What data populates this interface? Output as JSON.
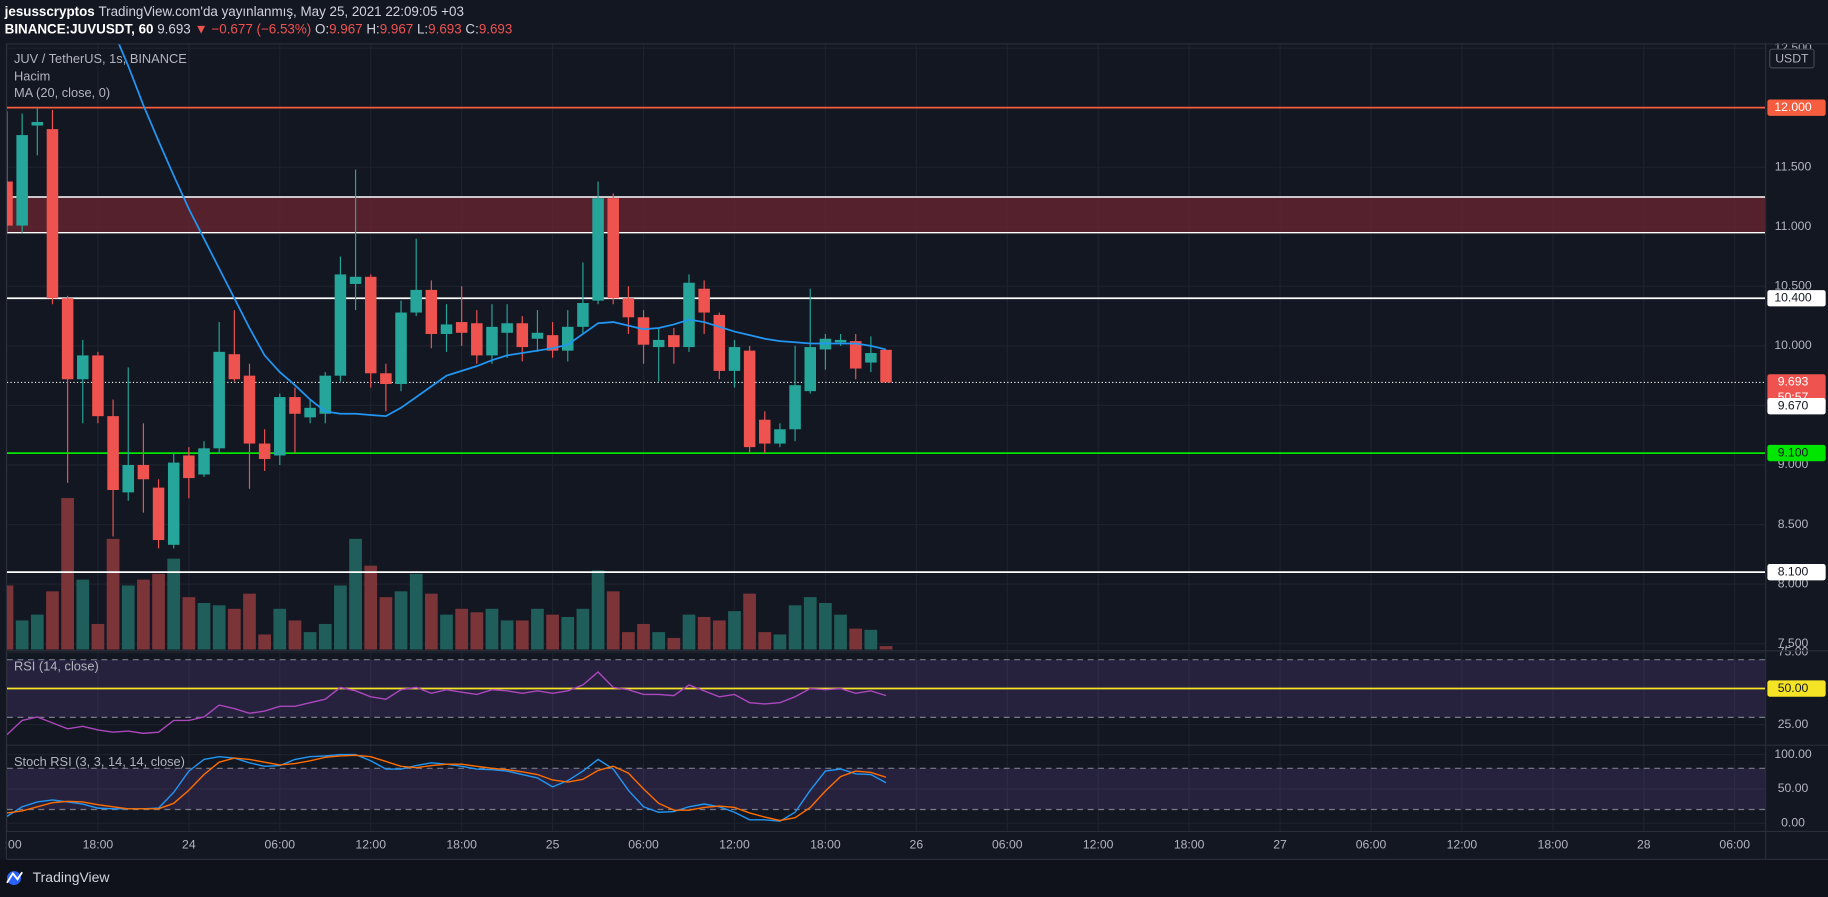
{
  "header": {
    "author": "jesusscryptos",
    "published": "TradingView.com'da yayınlanmış, May 25, 2021 22:09:05 +03",
    "symbol": "BINANCE:JUVUSDT, 60",
    "last": "9.693",
    "change": "▼ −0.677 (−6.53%)",
    "ohlc": [
      {
        "key": "O:",
        "value": "9.967"
      },
      {
        "key": "H:",
        "value": "9.967"
      },
      {
        "key": "L:",
        "value": "9.693"
      },
      {
        "key": "C:",
        "value": "9.693"
      }
    ]
  },
  "footer": {
    "brand": "TradingView"
  },
  "chart_data": [
    {
      "type": "candlestick",
      "title": "JUV / TetherUS, 1s, BINANCE",
      "unit": "USDT",
      "x": [
        "2021-05-23T12:00",
        "2021-05-23T13:00",
        "2021-05-23T14:00",
        "2021-05-23T15:00",
        "2021-05-23T16:00",
        "2021-05-23T17:00",
        "2021-05-23T18:00",
        "2021-05-23T19:00",
        "2021-05-23T20:00",
        "2021-05-23T21:00",
        "2021-05-23T22:00",
        "2021-05-23T23:00",
        "2021-05-24T00:00",
        "2021-05-24T01:00",
        "2021-05-24T02:00",
        "2021-05-24T03:00",
        "2021-05-24T04:00",
        "2021-05-24T05:00",
        "2021-05-24T06:00",
        "2021-05-24T07:00",
        "2021-05-24T08:00",
        "2021-05-24T09:00",
        "2021-05-24T10:00",
        "2021-05-24T11:00",
        "2021-05-24T12:00",
        "2021-05-24T13:00",
        "2021-05-24T14:00",
        "2021-05-24T15:00",
        "2021-05-24T16:00",
        "2021-05-24T17:00",
        "2021-05-24T18:00",
        "2021-05-24T19:00",
        "2021-05-24T20:00",
        "2021-05-24T21:00",
        "2021-05-24T22:00",
        "2021-05-24T23:00",
        "2021-05-25T00:00",
        "2021-05-25T01:00",
        "2021-05-25T02:00",
        "2021-05-25T03:00",
        "2021-05-25T04:00",
        "2021-05-25T05:00",
        "2021-05-25T06:00",
        "2021-05-25T07:00",
        "2021-05-25T08:00",
        "2021-05-25T09:00",
        "2021-05-25T10:00",
        "2021-05-25T11:00",
        "2021-05-25T12:00",
        "2021-05-25T13:00",
        "2021-05-25T14:00",
        "2021-05-25T15:00",
        "2021-05-25T16:00",
        "2021-05-25T17:00",
        "2021-05-25T18:00",
        "2021-05-25T19:00",
        "2021-05-25T20:00",
        "2021-05-25T21:00",
        "2021-05-25T22:00"
      ],
      "open": [
        11.38,
        11.01,
        11.85,
        11.82,
        10.4,
        9.72,
        9.92,
        9.41,
        8.77,
        9.0,
        8.81,
        8.33,
        9.08,
        8.92,
        9.14,
        9.93,
        9.75,
        9.18,
        9.08,
        9.57,
        9.4,
        9.43,
        9.75,
        10.52,
        10.58,
        9.77,
        9.68,
        10.28,
        10.47,
        10.1,
        10.2,
        10.19,
        9.92,
        10.11,
        10.19,
        10.06,
        10.09,
        9.96,
        10.16,
        10.38,
        11.24,
        10.4,
        10.24,
        9.99,
        10.09,
        9.99,
        10.48,
        10.26,
        9.79,
        9.96,
        9.38,
        9.18,
        9.3,
        9.62,
        9.97,
        10.03,
        10.04,
        9.86,
        9.967
      ],
      "high": [
        11.97,
        11.95,
        12.0,
        11.98,
        10.42,
        10.05,
        9.95,
        9.55,
        9.82,
        9.35,
        8.88,
        9.1,
        9.15,
        9.2,
        10.2,
        10.3,
        9.85,
        9.3,
        9.6,
        9.65,
        9.55,
        9.78,
        10.75,
        11.48,
        10.6,
        9.85,
        10.38,
        10.9,
        10.55,
        10.35,
        10.5,
        10.3,
        10.35,
        10.35,
        10.25,
        10.3,
        10.2,
        10.3,
        10.7,
        11.38,
        11.28,
        10.5,
        10.3,
        10.15,
        10.15,
        10.6,
        10.55,
        10.28,
        10.05,
        10.0,
        9.45,
        9.35,
        10.0,
        10.48,
        10.1,
        10.1,
        10.1,
        10.08,
        9.967
      ],
      "low": [
        10.94,
        10.95,
        11.6,
        10.35,
        8.85,
        9.35,
        9.35,
        8.4,
        8.7,
        8.6,
        8.3,
        8.3,
        8.72,
        8.9,
        9.1,
        9.7,
        8.8,
        8.95,
        9.0,
        9.1,
        9.35,
        9.35,
        9.7,
        10.3,
        9.65,
        9.45,
        9.62,
        10.25,
        9.98,
        9.95,
        10.0,
        9.85,
        9.85,
        9.9,
        9.87,
        9.95,
        9.9,
        9.87,
        10.1,
        10.35,
        10.35,
        10.1,
        9.85,
        9.7,
        9.85,
        9.95,
        10.1,
        9.72,
        9.65,
        9.1,
        9.1,
        9.15,
        9.2,
        9.6,
        9.8,
        10.0,
        9.72,
        9.78,
        9.693
      ],
      "close": [
        11.01,
        11.77,
        11.88,
        10.4,
        9.72,
        9.92,
        9.41,
        8.79,
        9.0,
        8.88,
        8.37,
        9.02,
        8.89,
        9.14,
        9.95,
        9.72,
        9.18,
        9.05,
        9.57,
        9.43,
        9.48,
        9.75,
        10.6,
        10.58,
        9.77,
        9.68,
        10.28,
        10.47,
        10.1,
        10.18,
        10.11,
        9.92,
        10.16,
        10.19,
        9.99,
        10.11,
        9.96,
        10.16,
        10.36,
        11.24,
        10.4,
        10.24,
        10.01,
        10.05,
        9.99,
        10.53,
        10.28,
        9.79,
        9.99,
        9.15,
        9.18,
        9.3,
        9.67,
        9.99,
        10.06,
        10.05,
        9.81,
        9.94,
        9.693
      ],
      "up_color": "#26a69a",
      "down_color": "#ef5350",
      "volume": {
        "name": "Hacim",
        "up_color": "#1f5e5a",
        "down_color": "#7b3438",
        "ylim": [
          0,
          350
        ],
        "values": [
          55,
          25,
          30,
          50,
          130,
          60,
          22,
          95,
          55,
          60,
          65,
          78,
          45,
          40,
          38,
          35,
          48,
          13,
          35,
          25,
          15,
          22,
          55,
          95,
          72,
          45,
          50,
          65,
          48,
          30,
          35,
          32,
          35,
          25,
          25,
          35,
          30,
          28,
          35,
          68,
          50,
          15,
          22,
          15,
          10,
          30,
          28,
          25,
          33,
          48,
          15,
          13,
          38,
          45,
          40,
          30,
          18,
          17,
          3
        ]
      },
      "series": [
        {
          "name": "MA (20, close, 0)",
          "color": "#2196f3",
          "values": [
            null,
            null,
            null,
            null,
            null,
            null,
            null,
            12.65,
            12.35,
            12.02,
            11.72,
            11.43,
            11.15,
            10.9,
            10.65,
            10.4,
            10.15,
            9.92,
            9.78,
            9.67,
            9.55,
            9.45,
            9.43,
            9.43,
            9.42,
            9.41,
            9.48,
            9.57,
            9.66,
            9.75,
            9.79,
            9.83,
            9.88,
            9.92,
            9.94,
            9.96,
            9.98,
            10.01,
            10.1,
            10.19,
            10.2,
            10.17,
            10.14,
            10.15,
            10.18,
            10.22,
            10.2,
            10.16,
            10.12,
            10.09,
            10.06,
            10.04,
            10.03,
            10.02,
            10.02,
            10.02,
            10.02,
            10.0,
            9.97
          ]
        }
      ],
      "xlim": [
        "2021-05-23T12:00",
        "2021-05-28T08:00"
      ],
      "xticks": [
        {
          "value": "2021-05-23T12:00",
          "label": ":00"
        },
        {
          "value": "2021-05-23T18:00",
          "label": "18:00"
        },
        {
          "value": "2021-05-24T00:00",
          "label": "24"
        },
        {
          "value": "2021-05-24T06:00",
          "label": "06:00"
        },
        {
          "value": "2021-05-24T12:00",
          "label": "12:00"
        },
        {
          "value": "2021-05-24T18:00",
          "label": "18:00"
        },
        {
          "value": "2021-05-25T00:00",
          "label": "25"
        },
        {
          "value": "2021-05-25T06:00",
          "label": "06:00"
        },
        {
          "value": "2021-05-25T12:00",
          "label": "12:00"
        },
        {
          "value": "2021-05-25T18:00",
          "label": "18:00"
        },
        {
          "value": "2021-05-26T00:00",
          "label": "26"
        },
        {
          "value": "2021-05-26T06:00",
          "label": "06:00"
        },
        {
          "value": "2021-05-26T12:00",
          "label": "12:00"
        },
        {
          "value": "2021-05-26T18:00",
          "label": "18:00"
        },
        {
          "value": "2021-05-27T00:00",
          "label": "27"
        },
        {
          "value": "2021-05-27T06:00",
          "label": "06:00"
        },
        {
          "value": "2021-05-27T12:00",
          "label": "12:00"
        },
        {
          "value": "2021-05-27T18:00",
          "label": "18:00"
        },
        {
          "value": "2021-05-28T00:00",
          "label": "28"
        },
        {
          "value": "2021-05-28T06:00",
          "label": "06:00"
        }
      ],
      "ylim": [
        7.45,
        12.53
      ],
      "yticks": [
        {
          "value": 7.5,
          "label": "7.500"
        },
        {
          "value": 8,
          "label": "8.000"
        },
        {
          "value": 8.5,
          "label": "8.500"
        },
        {
          "value": 9,
          "label": "9.000"
        },
        {
          "value": 9.5,
          "label": "9.500"
        },
        {
          "value": 10,
          "label": "10.000"
        },
        {
          "value": 10.5,
          "label": "10.500"
        },
        {
          "value": 11,
          "label": "11.000"
        },
        {
          "value": 11.5,
          "label": "11.500"
        },
        {
          "value": 12,
          "label": "12.000"
        },
        {
          "value": 12.5,
          "label": "12.500"
        }
      ],
      "grid": true,
      "zones": [
        {
          "from": 10.95,
          "to": 11.25,
          "color": "#6b2530",
          "border": "#ffffff"
        }
      ],
      "hlines": [
        {
          "value": 12,
          "label": "12.000",
          "color": "#f55d3e",
          "label_color": "#ffffff"
        },
        {
          "value": 10.4,
          "label": "10.400",
          "color": "#ffffff",
          "label_color": "#131722"
        },
        {
          "value": 9.1,
          "label": "9.100",
          "color": "#00e600",
          "label_color": "#131722"
        },
        {
          "value": 8.1,
          "label": "8.100",
          "color": "#ffffff",
          "label_color": "#131722"
        }
      ],
      "last_price": {
        "value": 9.693,
        "label": "9.693",
        "countdown": "50:57",
        "color": "#ef5350"
      },
      "price_labels": [
        {
          "value": 9.67,
          "label": "9.670"
        }
      ]
    },
    {
      "type": "line",
      "title": "RSI (14, close)",
      "series": [
        {
          "color": "#ab47bc",
          "values": [
            18.0,
            27.9,
            30.3,
            26.2,
            22.1,
            23.8,
            21.3,
            19.7,
            20.5,
            18.9,
            19.7,
            27.9,
            27.9,
            30.3,
            38.5,
            36.1,
            32.8,
            34.4,
            37.7,
            37.7,
            40.2,
            42.6,
            50.8,
            48.4,
            44.3,
            42.6,
            49.2,
            50.8,
            46.7,
            49.2,
            47.5,
            45.9,
            49.2,
            48.4,
            46.7,
            48.4,
            46.7,
            48.4,
            52.5,
            61.5,
            50.8,
            49.2,
            45.9,
            45.9,
            45.1,
            52.5,
            48.4,
            44.3,
            45.9,
            40.2,
            39.3,
            40.2,
            44.3,
            50.0,
            49.2,
            50.0,
            46.7,
            48.4,
            45.1
          ]
        }
      ],
      "ylim": [
        11.5,
        75.4
      ],
      "yticks": [
        {
          "value": 75,
          "label": "75.00"
        },
        {
          "value": 25,
          "label": "25.00"
        }
      ],
      "bands": [
        30,
        70
      ],
      "band_color": "#7e57c2",
      "hlines": [
        {
          "value": 50,
          "label": "50.00",
          "color": "#f5e425",
          "label_color": "#131722"
        }
      ]
    },
    {
      "type": "line",
      "title": "Stoch RSI (3, 3, 14, 14, close)",
      "series": [
        {
          "color": "#2196f3",
          "values": [
            10,
            24,
            31,
            34,
            31,
            28,
            22,
            21,
            21,
            21,
            22,
            45,
            76,
            93,
            97,
            95,
            88,
            83,
            84,
            93,
            97,
            98,
            100,
            100,
            91,
            79,
            79,
            84,
            88,
            86,
            83,
            79,
            78,
            76,
            71,
            66,
            53,
            62,
            76,
            93,
            79,
            48,
            24,
            16,
            17,
            24,
            28,
            24,
            16,
            5,
            5,
            3,
            16,
            48,
            76,
            79,
            72,
            71,
            59
          ]
        },
        {
          "color": "#ff6d00",
          "values": [
            15,
            18,
            24,
            30,
            32,
            31,
            27,
            24,
            21,
            21,
            21,
            29,
            48,
            71,
            89,
            95,
            93,
            89,
            85,
            87,
            91,
            96,
            98,
            99,
            97,
            90,
            83,
            81,
            84,
            86,
            86,
            83,
            80,
            78,
            75,
            71,
            63,
            60,
            64,
            77,
            83,
            73,
            50,
            29,
            19,
            19,
            23,
            25,
            23,
            15,
            9,
            4,
            8,
            23,
            47,
            68,
            76,
            74,
            67
          ]
        }
      ],
      "ylim": [
        -10.3,
        112
      ],
      "yticks": [
        {
          "value": 100,
          "label": "100.00"
        },
        {
          "value": 50,
          "label": "50.00"
        },
        {
          "value": 0,
          "label": "0.00"
        }
      ],
      "bands": [
        20,
        80
      ],
      "band_color": "#7e57c2"
    }
  ]
}
